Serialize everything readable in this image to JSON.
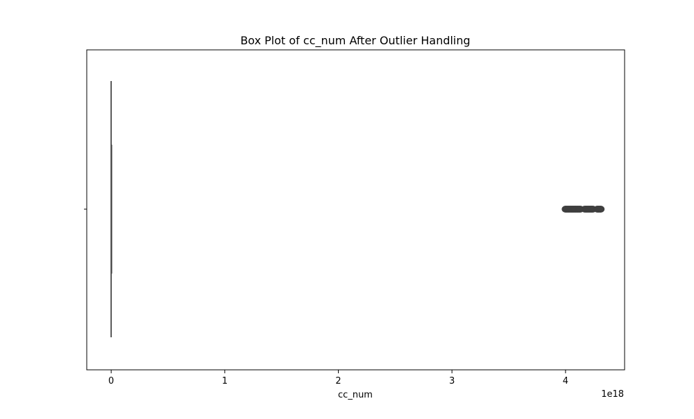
{
  "chart_data": {
    "type": "box",
    "title": "Box Plot of cc_num After Outlier Handling",
    "xlabel": "cc_num",
    "ylabel": "",
    "x_offset_label": "1e18",
    "x_unit_scale": 1e+18,
    "xlim": [
      -0.215,
      4.52
    ],
    "xticks": [
      0,
      1,
      2,
      3,
      4
    ],
    "xtick_labels": [
      "0",
      "1",
      "2",
      "3",
      "4"
    ],
    "orientation": "horizontal",
    "grid": false,
    "series": [
      {
        "box": {
          "whisker_low": 0.0,
          "q1": 0.0,
          "median": 0.0,
          "q3": 0.0,
          "whisker_high": 0.0
        },
        "outliers": [
          4.0,
          4.01,
          4.02,
          4.03,
          4.04,
          4.05,
          4.06,
          4.07,
          4.08,
          4.09,
          4.1,
          4.11,
          4.12,
          4.13,
          4.17,
          4.18,
          4.19,
          4.2,
          4.21,
          4.22,
          4.23,
          4.24,
          4.28,
          4.29,
          4.3,
          4.31
        ]
      }
    ],
    "colors": {
      "box_line": "#3f3f3f",
      "outlier_fill": "#3f3f3f",
      "frame": "#000000"
    }
  }
}
